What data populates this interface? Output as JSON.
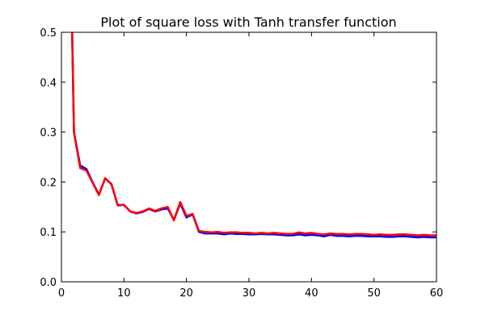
{
  "chart_data": {
    "type": "line",
    "title": "Plot of square loss with Tanh transfer function",
    "xlabel": "",
    "ylabel": "",
    "xlim": [
      0,
      60
    ],
    "ylim": [
      0.0,
      0.5
    ],
    "xticks": [
      0,
      10,
      20,
      30,
      40,
      50,
      60
    ],
    "xtick_labels": [
      "0",
      "10",
      "20",
      "30",
      "40",
      "50",
      "60"
    ],
    "yticks": [
      0.0,
      0.1,
      0.2,
      0.3,
      0.4,
      0.5
    ],
    "ytick_labels": [
      "0.0",
      "0.1",
      "0.2",
      "0.3",
      "0.4",
      "0.5"
    ],
    "grid": false,
    "legend": false,
    "x": [
      1,
      2,
      3,
      4,
      5,
      6,
      7,
      8,
      9,
      10,
      11,
      12,
      13,
      14,
      15,
      16,
      17,
      18,
      19,
      20,
      21,
      22,
      23,
      24,
      25,
      26,
      27,
      28,
      29,
      30,
      31,
      32,
      33,
      34,
      35,
      36,
      37,
      38,
      39,
      40,
      41,
      42,
      43,
      44,
      45,
      46,
      47,
      48,
      49,
      50,
      51,
      52,
      53,
      54,
      55,
      56,
      57,
      58,
      59,
      60
    ],
    "series": [
      {
        "color": "#0000ff",
        "values": [
          1.0,
          0.3,
          0.233,
          0.226,
          0.199,
          0.175,
          0.207,
          0.196,
          0.153,
          0.154,
          0.141,
          0.137,
          0.14,
          0.146,
          0.141,
          0.145,
          0.147,
          0.124,
          0.157,
          0.129,
          0.135,
          0.1,
          0.097,
          0.097,
          0.097,
          0.095,
          0.097,
          0.096,
          0.096,
          0.095,
          0.095,
          0.096,
          0.095,
          0.095,
          0.094,
          0.093,
          0.093,
          0.095,
          0.093,
          0.094,
          0.093,
          0.091,
          0.094,
          0.092,
          0.092,
          0.091,
          0.092,
          0.092,
          0.091,
          0.091,
          0.091,
          0.09,
          0.09,
          0.091,
          0.091,
          0.09,
          0.089,
          0.09,
          0.089,
          0.089
        ]
      },
      {
        "color": "#ff0000",
        "values": [
          1.0,
          0.3,
          0.228,
          0.223,
          0.198,
          0.174,
          0.208,
          0.195,
          0.154,
          0.154,
          0.141,
          0.138,
          0.141,
          0.147,
          0.142,
          0.147,
          0.15,
          0.123,
          0.16,
          0.132,
          0.136,
          0.102,
          0.1,
          0.099,
          0.1,
          0.098,
          0.099,
          0.099,
          0.098,
          0.098,
          0.097,
          0.098,
          0.097,
          0.098,
          0.097,
          0.096,
          0.096,
          0.099,
          0.097,
          0.098,
          0.096,
          0.095,
          0.097,
          0.096,
          0.096,
          0.095,
          0.096,
          0.096,
          0.095,
          0.094,
          0.095,
          0.094,
          0.094,
          0.095,
          0.095,
          0.094,
          0.093,
          0.094,
          0.093,
          0.093
        ]
      }
    ]
  }
}
